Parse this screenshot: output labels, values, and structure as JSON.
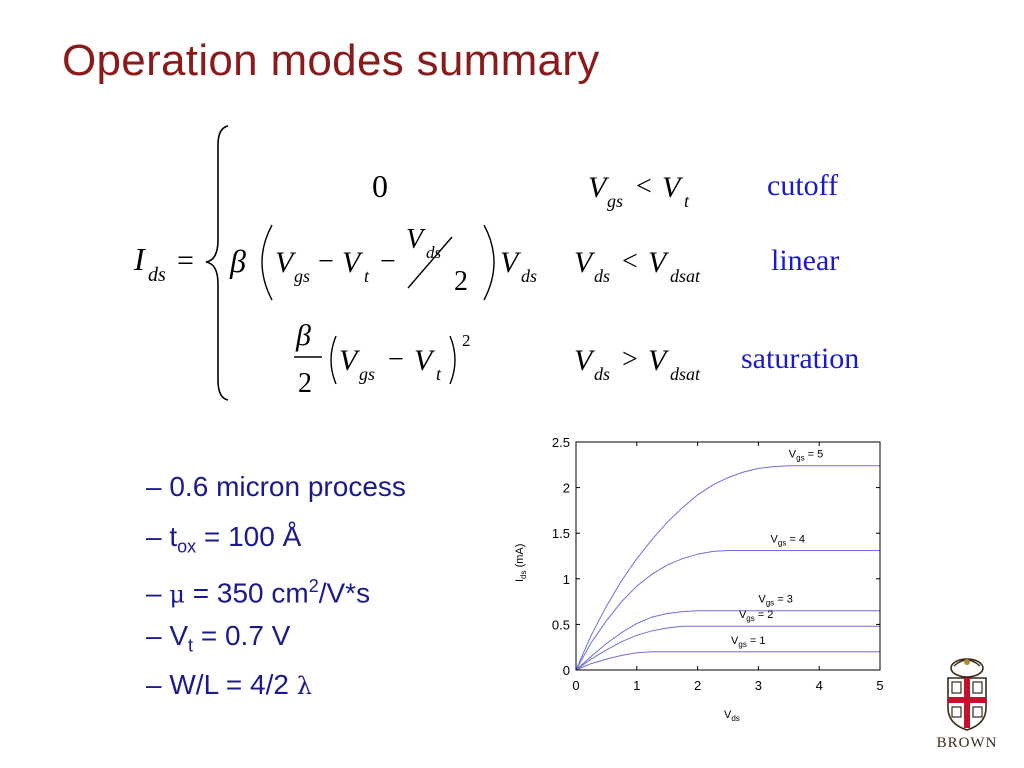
{
  "slide": {
    "title": "Operation modes summary"
  },
  "equation": {
    "lhs_symbol": "I",
    "lhs_sub": "ds",
    "equals": "=",
    "cases": [
      {
        "mode": "cutoff",
        "expr_value": "0",
        "cond_lhs": "V",
        "cond_lhs_sub": "gs",
        "cond_op": "<",
        "cond_rhs": "V",
        "cond_rhs_sub": "t"
      },
      {
        "mode": "linear",
        "cond_lhs": "V",
        "cond_lhs_sub": "ds",
        "cond_op": "<",
        "cond_rhs": "V",
        "cond_rhs_sub": "dsat"
      },
      {
        "mode": "saturation",
        "cond_lhs": "V",
        "cond_lhs_sub": "ds",
        "cond_op": ">",
        "cond_rhs": "V",
        "cond_rhs_sub": "dsat"
      }
    ],
    "symbols": {
      "beta": "β",
      "V": "V",
      "gs": "gs",
      "t": "t",
      "ds": "ds",
      "minus": "−",
      "two": "2",
      "square": "2"
    }
  },
  "bullets": [
    {
      "dash": "–",
      "text": "0.6 micron process"
    },
    {
      "dash": "–",
      "pre": "t",
      "sub": "ox",
      "post": " = 100 Å"
    },
    {
      "dash": "–",
      "greek": "μ",
      "pre": " = 350 cm",
      "sup": "2",
      "post": "/V*s"
    },
    {
      "dash": "–",
      "pre": "V",
      "sub": "t",
      "post": " = 0.7 V"
    },
    {
      "dash": "–",
      "pre": "W/L = 4/2 ",
      "greek": "λ"
    }
  ],
  "chart_data": {
    "type": "line",
    "xlabel": {
      "main": "V",
      "sub": "ds"
    },
    "ylabel": {
      "main": "I",
      "sub": "ds",
      "suffix": " (mA)"
    },
    "xlim": [
      0,
      5
    ],
    "ylim": [
      0,
      2.5
    ],
    "x_ticks": [
      "0",
      "1",
      "2",
      "3",
      "4",
      "5"
    ],
    "y_ticks": [
      "0",
      "0.5",
      "1",
      "1.5",
      "2",
      "2.5"
    ],
    "grid": false,
    "line_color": "#6f6fd6",
    "x": [
      0,
      0.25,
      0.5,
      0.75,
      1,
      1.25,
      1.5,
      1.75,
      2,
      2.25,
      2.5,
      2.75,
      3,
      3.25,
      3.5,
      3.75,
      4,
      4.25,
      4.5,
      4.75,
      5
    ],
    "series": [
      {
        "label_main": "V",
        "label_sub": "gs",
        "label_value": " = 1",
        "values": [
          0,
          0.07,
          0.12,
          0.16,
          0.19,
          0.2,
          0.2,
          0.2,
          0.2,
          0.2,
          0.2,
          0.2,
          0.2,
          0.2,
          0.2,
          0.2,
          0.2,
          0.2,
          0.2,
          0.2,
          0.2
        ]
      },
      {
        "label_main": "V",
        "label_sub": "gs",
        "label_value": " = 2",
        "values": [
          0,
          0.12,
          0.22,
          0.31,
          0.38,
          0.43,
          0.46,
          0.48,
          0.48,
          0.48,
          0.48,
          0.48,
          0.48,
          0.48,
          0.48,
          0.48,
          0.48,
          0.48,
          0.48,
          0.48,
          0.48
        ]
      },
      {
        "label_main": "V",
        "label_sub": "gs",
        "label_value": " = 3",
        "values": [
          0,
          0.15,
          0.29,
          0.41,
          0.51,
          0.58,
          0.62,
          0.64,
          0.65,
          0.65,
          0.65,
          0.65,
          0.65,
          0.65,
          0.65,
          0.65,
          0.65,
          0.65,
          0.65,
          0.65,
          0.65
        ]
      },
      {
        "label_main": "V",
        "label_sub": "gs",
        "label_value": " = 4",
        "values": [
          0,
          0.3,
          0.54,
          0.75,
          0.92,
          1.05,
          1.15,
          1.22,
          1.27,
          1.3,
          1.31,
          1.31,
          1.31,
          1.31,
          1.31,
          1.31,
          1.31,
          1.31,
          1.31,
          1.31,
          1.31
        ]
      },
      {
        "label_main": "V",
        "label_sub": "gs",
        "label_value": " = 5",
        "values": [
          0,
          0.38,
          0.7,
          0.98,
          1.22,
          1.43,
          1.62,
          1.78,
          1.92,
          2.03,
          2.11,
          2.17,
          2.21,
          2.23,
          2.24,
          2.24,
          2.24,
          2.24,
          2.24,
          2.24,
          2.24
        ]
      }
    ]
  },
  "logo": {
    "text": "BROWN",
    "colors": {
      "red": "#c8102e",
      "dark": "#3a2a1a",
      "gold": "#b08d2e"
    }
  }
}
